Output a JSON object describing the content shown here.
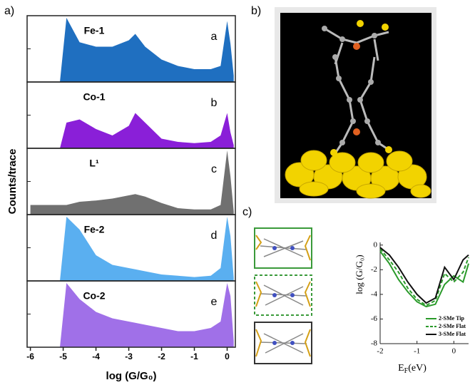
{
  "panel_labels": [
    "a)",
    "b)",
    "c)"
  ],
  "chart_data": [
    {
      "type": "area",
      "ylabel": "Counts/trace",
      "xlabel": "log (G/G₀)",
      "xlim": [
        -6.1,
        0.25
      ],
      "xticks": [
        -6,
        -5,
        -4,
        -3,
        -2,
        -1,
        0
      ],
      "ylim": [
        0,
        100
      ],
      "x": [
        -6,
        -5.5,
        -5.1,
        -4.9,
        -4.5,
        -4,
        -3.5,
        -3,
        -2.8,
        -2.5,
        -2,
        -1.5,
        -1,
        -0.5,
        -0.2,
        0,
        0.1,
        0.2
      ],
      "series": [
        {
          "name": "Fe-1",
          "letter": "a",
          "color": "#1f6fc0",
          "values": [
            0,
            0,
            0,
            100,
            62,
            55,
            55,
            65,
            75,
            55,
            35,
            25,
            20,
            20,
            25,
            95,
            60,
            10
          ]
        },
        {
          "name": "Co-1",
          "letter": "b",
          "color": "#8a1fd8",
          "values": [
            0,
            0,
            0,
            40,
            45,
            30,
            20,
            35,
            55,
            40,
            15,
            10,
            8,
            10,
            20,
            55,
            25,
            5
          ]
        },
        {
          "name": "L¹",
          "letter": "c",
          "color": "#707070",
          "values": [
            15,
            15,
            15,
            15,
            20,
            22,
            25,
            30,
            32,
            28,
            18,
            10,
            8,
            8,
            15,
            100,
            60,
            5
          ]
        },
        {
          "name": "Fe-2",
          "letter": "d",
          "color": "#5aaff0",
          "values": [
            0,
            0,
            0,
            100,
            80,
            40,
            25,
            20,
            18,
            15,
            10,
            8,
            6,
            8,
            20,
            100,
            70,
            5
          ]
        },
        {
          "name": "Co-2",
          "letter": "e",
          "color": "#a070e8",
          "values": [
            0,
            0,
            0,
            100,
            75,
            55,
            45,
            40,
            38,
            35,
            30,
            25,
            25,
            30,
            40,
            100,
            80,
            10
          ]
        }
      ]
    },
    {
      "type": "line",
      "ylabel": "log (G/G₀)",
      "xlabel": [
        "E",
        "F",
        "(eV)"
      ],
      "xlim": [
        -2,
        0.4
      ],
      "xticks": [
        -2,
        -1,
        0
      ],
      "ylim": [
        -8,
        0.1
      ],
      "yticks": [
        0,
        -2,
        -4,
        -6,
        -8
      ],
      "x": [
        -2,
        -1.75,
        -1.5,
        -1.25,
        -1,
        -0.75,
        -0.5,
        -0.25,
        0,
        0.25,
        0.4
      ],
      "series": [
        {
          "name": "2-SMe Tip",
          "color": "#2a9a2a",
          "dash": false,
          "values": [
            -0.5,
            -1.5,
            -2.8,
            -3.8,
            -4.6,
            -5.0,
            -4.8,
            -3.2,
            -2.5,
            -3.0,
            -1.5
          ]
        },
        {
          "name": "2-SMe Flat",
          "color": "#2a9a2a",
          "dash": true,
          "values": [
            -0.3,
            -1.2,
            -2.2,
            -3.5,
            -4.4,
            -4.9,
            -4.5,
            -2.3,
            -3.0,
            -2.2,
            -1.0
          ]
        },
        {
          "name": "3-SMe Flat",
          "color": "#111111",
          "dash": false,
          "values": [
            -0.2,
            -0.8,
            -1.8,
            -3.0,
            -4.0,
            -4.7,
            -4.3,
            -1.8,
            -2.8,
            -1.2,
            -0.8
          ]
        }
      ]
    }
  ]
}
